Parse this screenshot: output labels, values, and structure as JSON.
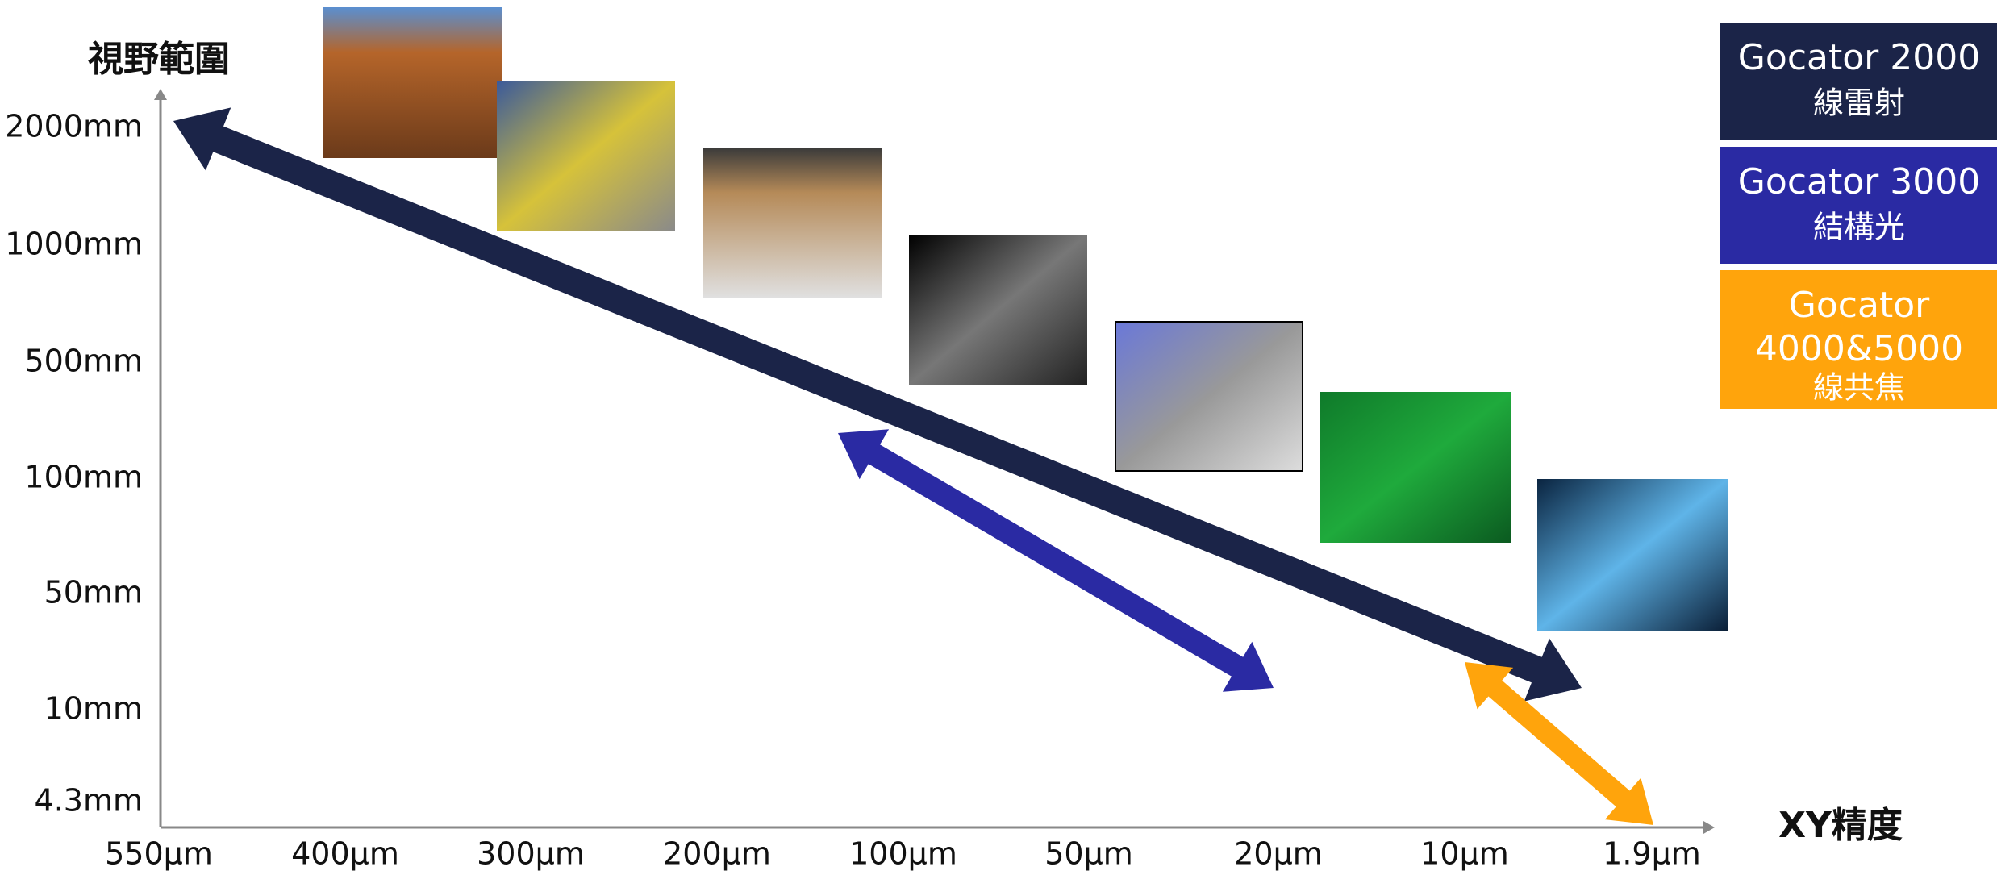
{
  "y_axis": {
    "title": "視野範圍",
    "labels": [
      "2000mm",
      "1000mm",
      "500mm",
      "100mm",
      "50mm",
      "10mm",
      "4.3mm"
    ]
  },
  "x_axis": {
    "title": "XY精度",
    "labels": [
      "550µm",
      "400µm",
      "300µm",
      "200µm",
      "100µm",
      "50µm",
      "20µm",
      "10µm",
      "1.9µm"
    ]
  },
  "legend": [
    {
      "name": "Gocator 2000",
      "subtitle": "線雷射",
      "color": "#1b2448"
    },
    {
      "name": "Gocator 3000",
      "subtitle": "結構光",
      "color": "#2a2aa3"
    },
    {
      "name": "Gocator 4000&5000",
      "subtitle": "線共焦",
      "color": "#ffa40c"
    }
  ]
}
